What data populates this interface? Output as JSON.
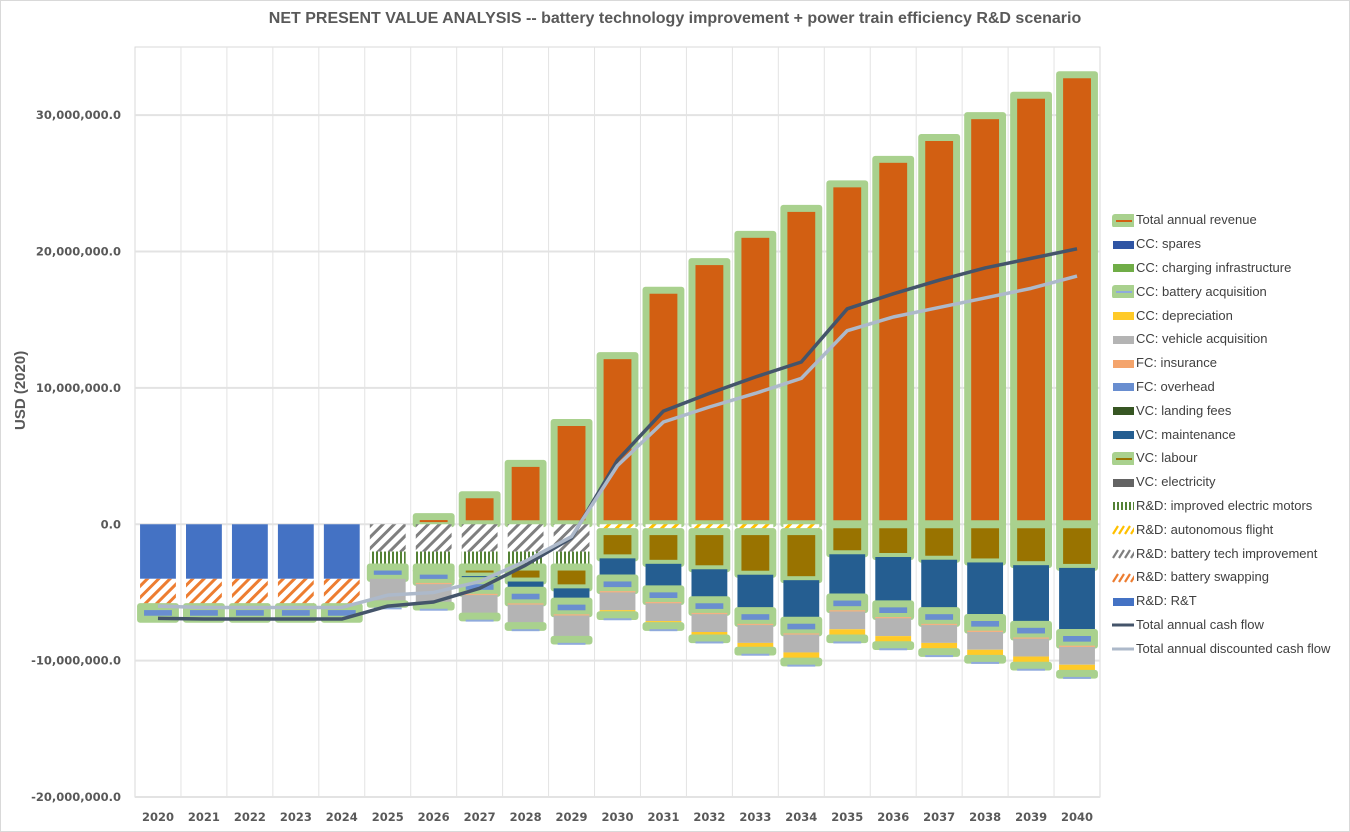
{
  "chart_data": {
    "type": "bar",
    "stacked": true,
    "title": "NET PRESENT VALUE ANALYSIS -- battery technology improvement + power train efficiency R&D scenario",
    "xlabel": "",
    "ylabel": "USD (2020)",
    "ylim": [
      -20000000,
      35000000
    ],
    "yticks": [
      {
        "value": 30000000,
        "label": "30,000,000.0"
      },
      {
        "value": 20000000,
        "label": "20,000,000.0"
      },
      {
        "value": 10000000,
        "label": "10,000,000.0"
      },
      {
        "value": 0,
        "label": "0.0"
      },
      {
        "value": -10000000,
        "label": "-10,000,000.0"
      },
      {
        "value": -20000000,
        "label": "-20,000,000.0"
      }
    ],
    "grid": true,
    "legend_position": "right",
    "categories": [
      "2020",
      "2021",
      "2022",
      "2023",
      "2024",
      "2025",
      "2026",
      "2027",
      "2028",
      "2029",
      "2030",
      "2031",
      "2032",
      "2033",
      "2034",
      "2035",
      "2036",
      "2037",
      "2038",
      "2039",
      "2040"
    ],
    "series": [
      {
        "name": "Total annual revenue",
        "kind": "bar",
        "color": "#D25F12",
        "outline": "#A9D18E",
        "pattern": "solid",
        "values": [
          0,
          0,
          0,
          0,
          0,
          0,
          600000,
          2200000,
          4500000,
          7500000,
          12400000,
          17200000,
          19300000,
          21300000,
          23200000,
          25000000,
          26800000,
          28400000,
          30000000,
          31500000,
          33000000
        ]
      },
      {
        "name": "R&D: R&T",
        "kind": "bar",
        "color": "#4472C4",
        "pattern": "solid",
        "values": [
          -4000000,
          -4000000,
          -4000000,
          -4000000,
          -4000000,
          0,
          0,
          0,
          0,
          0,
          0,
          0,
          0,
          0,
          0,
          0,
          0,
          0,
          0,
          0,
          0
        ]
      },
      {
        "name": "R&D: battery tech improvement",
        "kind": "bar",
        "color": "#7F7F7F",
        "pattern": "hatch",
        "values": [
          0,
          0,
          0,
          0,
          0,
          -2000000,
          -2000000,
          -2000000,
          -2000000,
          -2000000,
          0,
          0,
          0,
          0,
          0,
          0,
          0,
          0,
          0,
          0,
          0
        ]
      },
      {
        "name": "R&D: autonomous flight",
        "kind": "bar",
        "color": "#FFC000",
        "pattern": "hatch",
        "values": [
          0,
          0,
          0,
          0,
          0,
          0,
          0,
          0,
          0,
          0,
          -500000,
          -500000,
          -500000,
          -500000,
          -500000,
          0,
          0,
          0,
          0,
          0,
          0
        ]
      },
      {
        "name": "R&D: improved electric motors",
        "kind": "bar",
        "color": "#548235",
        "pattern": "vstripe",
        "values": [
          0,
          0,
          0,
          0,
          0,
          -1100000,
          -1100000,
          -1100000,
          -1100000,
          -1100000,
          0,
          0,
          0,
          0,
          0,
          0,
          0,
          0,
          0,
          0,
          0
        ]
      },
      {
        "name": "R&D: battery swapping",
        "kind": "bar",
        "color": "#ED7D31",
        "pattern": "hatch",
        "values": [
          -2000000,
          -2000000,
          -2000000,
          -2000000,
          -2000000,
          0,
          0,
          0,
          0,
          0,
          0,
          0,
          0,
          0,
          0,
          0,
          0,
          0,
          0,
          0,
          0
        ]
      },
      {
        "name": "VC: labour",
        "kind": "bar",
        "color": "#997300",
        "outline": "#A9D18E",
        "pattern": "solid",
        "values": [
          0,
          0,
          0,
          0,
          0,
          0,
          -300000,
          -700000,
          -1100000,
          -1600000,
          -2000000,
          -2400000,
          -2800000,
          -3200000,
          -3600000,
          -2200000,
          -2400000,
          -2600000,
          -2800000,
          -3000000,
          -3200000
        ]
      },
      {
        "name": "VC: maintenance",
        "kind": "bar",
        "color": "#255E91",
        "pattern": "solid",
        "values": [
          0,
          0,
          0,
          0,
          0,
          0,
          0,
          -300000,
          -600000,
          -900000,
          -1400000,
          -1800000,
          -2200000,
          -2600000,
          -2900000,
          -3100000,
          -3400000,
          -3700000,
          -4000000,
          -4300000,
          -4700000
        ]
      },
      {
        "name": "FC: overhead",
        "kind": "bar",
        "color": "#698ED0",
        "outline": "#A9D18E",
        "pattern": "solid",
        "values": [
          -1000000,
          -1000000,
          -1000000,
          -1000000,
          -1000000,
          -900000,
          -900000,
          -1000000,
          -1000000,
          -1000000,
          -1000000,
          -1000000,
          -1000000,
          -1000000,
          -1000000,
          -1000000,
          -1000000,
          -1000000,
          -1000000,
          -1000000,
          -1000000
        ]
      },
      {
        "name": "FC: insurance",
        "kind": "bar",
        "color": "#F4B183",
        "pattern": "solid",
        "values": [
          0,
          0,
          0,
          0,
          0,
          0,
          -100000,
          -100000,
          -100000,
          -100000,
          -100000,
          -100000,
          -100000,
          -100000,
          -100000,
          -100000,
          -100000,
          -100000,
          -100000,
          -100000,
          -100000
        ]
      },
      {
        "name": "CC: vehicle acquisition",
        "kind": "bar",
        "color": "#B4B4B4",
        "pattern": "solid",
        "values": [
          0,
          0,
          0,
          0,
          0,
          -1800000,
          -1500000,
          -1500000,
          -1500000,
          -1500000,
          -1300000,
          -1300000,
          -1300000,
          -1300000,
          -1300000,
          -1300000,
          -1300000,
          -1300000,
          -1300000,
          -1300000,
          -1300000
        ]
      },
      {
        "name": "CC: depreciation",
        "kind": "bar",
        "color": "#FFCA28",
        "pattern": "solid",
        "values": [
          0,
          0,
          0,
          0,
          0,
          0,
          0,
          0,
          0,
          -200000,
          -300000,
          -300000,
          -400000,
          -500000,
          -600000,
          -600000,
          -600000,
          -600000,
          -600000,
          -600000,
          -600000
        ]
      },
      {
        "name": "CC: battery acquisition",
        "kind": "bar",
        "color": "#8FAADC",
        "outline": "#A9D18E",
        "pattern": "solid",
        "values": [
          0,
          0,
          0,
          0,
          0,
          -100000,
          -200000,
          -200000,
          -200000,
          -200000,
          -200000,
          -200000,
          -200000,
          -200000,
          -200000,
          -200000,
          -200000,
          -200000,
          -200000,
          -200000,
          -200000
        ]
      },
      {
        "name": "CC: charging infrastructure",
        "kind": "bar",
        "color": "#70AD47",
        "pattern": "solid",
        "values": [
          0,
          0,
          0,
          0,
          0,
          0,
          0,
          0,
          0,
          0,
          0,
          0,
          0,
          0,
          0,
          0,
          0,
          0,
          0,
          0,
          0
        ]
      },
      {
        "name": "CC: spares",
        "kind": "bar",
        "color": "#2F55A4",
        "pattern": "solid",
        "values": [
          0,
          0,
          0,
          0,
          0,
          0,
          0,
          0,
          0,
          0,
          0,
          0,
          0,
          0,
          0,
          0,
          0,
          0,
          0,
          0,
          0
        ]
      },
      {
        "name": "VC: landing fees",
        "kind": "bar",
        "color": "#375623",
        "pattern": "solid",
        "values": [
          0,
          0,
          0,
          0,
          0,
          0,
          0,
          0,
          0,
          0,
          0,
          0,
          0,
          0,
          0,
          0,
          0,
          0,
          0,
          0,
          0
        ]
      },
      {
        "name": "VC: electricity",
        "kind": "bar",
        "color": "#636363",
        "pattern": "solid",
        "values": [
          0,
          0,
          0,
          0,
          0,
          0,
          0,
          0,
          0,
          0,
          0,
          0,
          0,
          0,
          0,
          0,
          0,
          0,
          0,
          0,
          0
        ]
      },
      {
        "name": "Total annual cash flow",
        "kind": "line",
        "color": "#44546A",
        "values": [
          -6900000,
          -6950000,
          -6950000,
          -6950000,
          -6950000,
          -6000000,
          -5700000,
          -4700000,
          -3000000,
          -1000000,
          4700000,
          8300000,
          9600000,
          10800000,
          11900000,
          15800000,
          16900000,
          17900000,
          18800000,
          19500000,
          20200000
        ]
      },
      {
        "name": "Total annual discounted cash flow",
        "kind": "line",
        "color": "#ADB9CA",
        "values": [
          -6000000,
          -6100000,
          -6100000,
          -6100000,
          -6100000,
          -5200000,
          -5000000,
          -4200000,
          -2700000,
          -900000,
          4300000,
          7500000,
          8600000,
          9600000,
          10700000,
          14200000,
          15200000,
          15900000,
          16600000,
          17300000,
          18200000
        ]
      }
    ],
    "legend": [
      {
        "label": "Total annual revenue",
        "swatch": "line-boxed",
        "color": "#D25F12",
        "box": "#A9D18E"
      },
      {
        "label": "CC: spares",
        "swatch": "solid",
        "color": "#2F55A4"
      },
      {
        "label": "CC: charging infrastructure",
        "swatch": "solid",
        "color": "#70AD47"
      },
      {
        "label": "CC: battery acquisition",
        "swatch": "line-boxed",
        "color": "#8FAADC",
        "box": "#A9D18E"
      },
      {
        "label": "CC: depreciation",
        "swatch": "solid",
        "color": "#FFCA28"
      },
      {
        "label": "CC: vehicle acquisition",
        "swatch": "solid",
        "color": "#B4B4B4"
      },
      {
        "label": "FC: insurance",
        "swatch": "solid",
        "color": "#F4A46C"
      },
      {
        "label": "FC: overhead",
        "swatch": "solid",
        "color": "#698ED0"
      },
      {
        "label": "VC: landing fees",
        "swatch": "solid",
        "color": "#375623"
      },
      {
        "label": "VC: maintenance",
        "swatch": "solid",
        "color": "#255E91"
      },
      {
        "label": "VC: labour",
        "swatch": "line-boxed",
        "color": "#997300",
        "box": "#A9D18E"
      },
      {
        "label": "VC: electricity",
        "swatch": "solid",
        "color": "#636363"
      },
      {
        "label": "R&D: improved electric motors",
        "swatch": "vstripe",
        "color": "#548235"
      },
      {
        "label": "R&D: autonomous flight",
        "swatch": "hatch",
        "color": "#FFC000"
      },
      {
        "label": "R&D: battery tech improvement",
        "swatch": "hatch",
        "color": "#7F7F7F"
      },
      {
        "label": "R&D: battery swapping",
        "swatch": "hatch",
        "color": "#ED7D31"
      },
      {
        "label": "R&D: R&T",
        "swatch": "solid",
        "color": "#4472C4"
      },
      {
        "label": "Total annual cash flow",
        "swatch": "line",
        "color": "#44546A"
      },
      {
        "label": "Total annual discounted cash flow",
        "swatch": "line",
        "color": "#ADB9CA"
      }
    ]
  }
}
